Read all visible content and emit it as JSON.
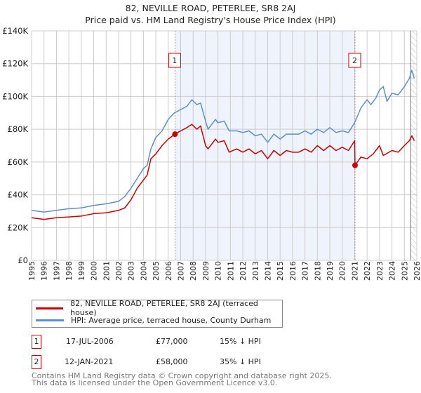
{
  "title": "82, NEVILLE ROAD, PETERLEE, SR8 2AJ",
  "subtitle": "Price paid vs. HM Land Registry's House Price Index (HPI)",
  "colors": {
    "property": "#cc0000",
    "hpi": "#5b8fd4",
    "shade": "#eef3fc",
    "grid": "#cccccc"
  },
  "chart_data": {
    "type": "line",
    "title": "82, NEVILLE ROAD, PETERLEE, SR8 2AJ — Price paid vs. HM Land Registry's House Price Index (HPI)",
    "xlim": [
      1995,
      2026
    ],
    "ylim": [
      0,
      140000
    ],
    "yticks": [
      0,
      20000,
      40000,
      60000,
      80000,
      100000,
      120000,
      140000
    ],
    "ytick_labels": [
      "£0",
      "£20K",
      "£40K",
      "£60K",
      "£80K",
      "£100K",
      "£120K",
      "£140K"
    ],
    "xtick_labels": [
      "1995",
      "1996",
      "1997",
      "1998",
      "1999",
      "2000",
      "2001",
      "2002",
      "2003",
      "2004",
      "2005",
      "2006",
      "2007",
      "2008",
      "2009",
      "2010",
      "2011",
      "2012",
      "2013",
      "2014",
      "2015",
      "2016",
      "2017",
      "2018",
      "2019",
      "2020",
      "2021",
      "2022",
      "2023",
      "2024",
      "2025",
      "2026"
    ],
    "grid": true,
    "shaded_range": [
      2006.54,
      2021.03
    ],
    "hatched_from": 2025.5,
    "series": [
      {
        "name": "82, NEVILLE ROAD, PETERLEE, SR8 2AJ (terraced house)",
        "color": "#cc0000",
        "x": [
          1995,
          1996,
          1997,
          1998,
          1999,
          2000,
          2001,
          2002,
          2002.5,
          2003,
          2003.5,
          2004,
          2004.3,
          2004.6,
          2005,
          2005.5,
          2006,
          2006.54,
          2007,
          2007.5,
          2007.9,
          2008.3,
          2008.6,
          2009,
          2009.2,
          2009.8,
          2010,
          2010.5,
          2010.9,
          2011.5,
          2012,
          2012.5,
          2013,
          2013.5,
          2014,
          2014.5,
          2015,
          2015.5,
          2016,
          2016.5,
          2017,
          2017.5,
          2018,
          2018.5,
          2019,
          2019.5,
          2020,
          2020.5,
          2021,
          2021.03,
          2021.5,
          2022,
          2022.5,
          2023,
          2023.3,
          2024,
          2024.5,
          2025,
          2025.4,
          2025.6,
          2025.8
        ],
        "y": [
          26000,
          25000,
          26000,
          26500,
          27000,
          28500,
          29000,
          30500,
          32000,
          37000,
          44000,
          49000,
          52000,
          62000,
          65000,
          70000,
          74000,
          77000,
          79000,
          81000,
          83000,
          80000,
          82000,
          70000,
          68000,
          74000,
          72000,
          73000,
          66000,
          68000,
          66000,
          68000,
          65000,
          67000,
          62000,
          67000,
          64000,
          67000,
          66000,
          66000,
          68000,
          66000,
          70000,
          67000,
          70000,
          67000,
          69000,
          67000,
          73000,
          58000,
          63000,
          62000,
          65000,
          70000,
          64000,
          67000,
          66000,
          70000,
          73000,
          76000,
          73000
        ]
      },
      {
        "name": "HPI: Average price, terraced house, County Durham",
        "color": "#5b8fd4",
        "x": [
          1995,
          1996,
          1997,
          1998,
          1999,
          2000,
          2001,
          2002,
          2002.5,
          2003,
          2003.5,
          2004,
          2004.3,
          2004.6,
          2005,
          2005.5,
          2006,
          2006.5,
          2007,
          2007.5,
          2007.9,
          2008.3,
          2008.6,
          2009,
          2009.2,
          2009.8,
          2010,
          2010.5,
          2010.9,
          2011.5,
          2012,
          2012.5,
          2013,
          2013.5,
          2014,
          2014.5,
          2015,
          2015.5,
          2016,
          2016.5,
          2017,
          2017.5,
          2018,
          2018.5,
          2019,
          2019.5,
          2020,
          2020.5,
          2021,
          2021.5,
          2022,
          2022.3,
          2022.7,
          2023,
          2023.3,
          2023.6,
          2024,
          2024.5,
          2025,
          2025.4,
          2025.6,
          2025.8
        ],
        "y": [
          30500,
          29500,
          30500,
          31500,
          32000,
          33500,
          34500,
          36000,
          39000,
          44000,
          50000,
          56000,
          58000,
          68000,
          75000,
          79000,
          86000,
          90000,
          92000,
          94000,
          98000,
          95000,
          96000,
          85000,
          80000,
          86000,
          84000,
          85000,
          79000,
          79000,
          78000,
          79000,
          76000,
          77000,
          72000,
          77000,
          74000,
          77000,
          77000,
          77000,
          79000,
          77000,
          80000,
          78000,
          81000,
          78000,
          79000,
          78000,
          84000,
          93000,
          98000,
          95000,
          99000,
          104000,
          106000,
          97000,
          102000,
          101000,
          106000,
          111000,
          116000,
          111000
        ]
      }
    ],
    "annotations": [
      {
        "label": "1",
        "x": 2006.54,
        "y": 77000
      },
      {
        "label": "2",
        "x": 2021.03,
        "y": 58000
      }
    ]
  },
  "legend": {
    "property": "82, NEVILLE ROAD, PETERLEE, SR8 2AJ (terraced house)",
    "hpi": "HPI: Average price, terraced house, County Durham"
  },
  "sales": [
    {
      "num": "1",
      "date": "17-JUL-2006",
      "price": "£77,000",
      "diff": "15% ↓ HPI"
    },
    {
      "num": "2",
      "date": "12-JAN-2021",
      "price": "£58,000",
      "diff": "35% ↓ HPI"
    }
  ],
  "footer": {
    "line1": "Contains HM Land Registry data © Crown copyright and database right 2025.",
    "line2": "This data is licensed under the Open Government Licence v3.0."
  }
}
